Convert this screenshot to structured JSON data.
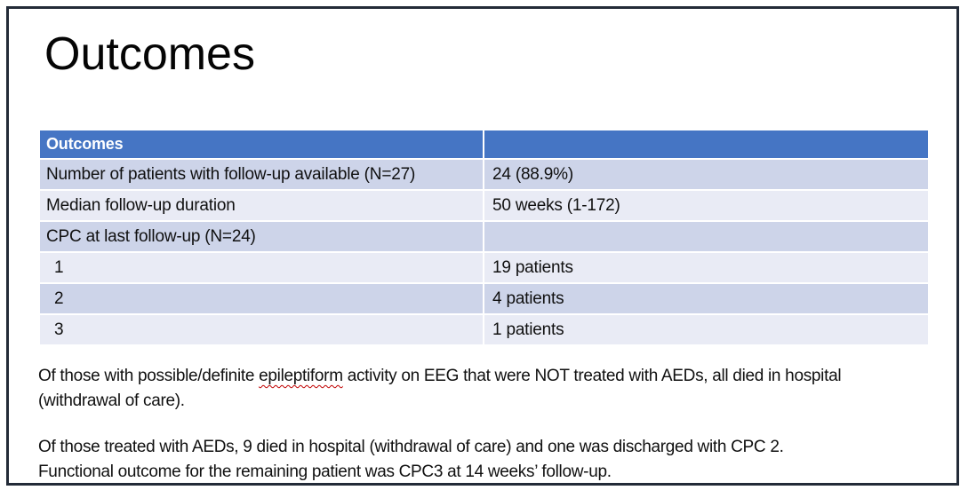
{
  "slide": {
    "title": "Outcomes"
  },
  "table": {
    "header": {
      "col1": "Outcomes",
      "col2": ""
    },
    "rows": [
      {
        "label": "Number of patients with follow-up available (N=27)",
        "value": "24 (88.9%)"
      },
      {
        "label": "Median follow-up duration",
        "value": "50 weeks (1-172)"
      },
      {
        "label": "CPC at last follow-up (N=24)",
        "value": ""
      },
      {
        "label": "1",
        "value": "19 patients"
      },
      {
        "label": "2",
        "value": "4 patients"
      },
      {
        "label": "3",
        "value": "1 patients"
      }
    ]
  },
  "notes": {
    "para1": {
      "line1_before": "Of those with possible/definite ",
      "line1_misspelled": "epileptiform",
      "line1_after": " activity on EEG that were NOT treated with AEDs, all died in hospital",
      "line2": "(withdrawal of care)."
    },
    "para2": {
      "line1": "Of those treated with AEDs, 9 died in hospital (withdrawal of care) and one was discharged with CPC 2.",
      "line2": "Functional outcome for the remaining patient was CPC3 at 14 weeks’ follow-up."
    }
  },
  "colors": {
    "table_header_bg": "#4575c4",
    "band_dark": "#cdd4e9",
    "band_light": "#e9ebf5",
    "frame_border": "#232b38",
    "spellcheck_underline": "#c00000"
  }
}
